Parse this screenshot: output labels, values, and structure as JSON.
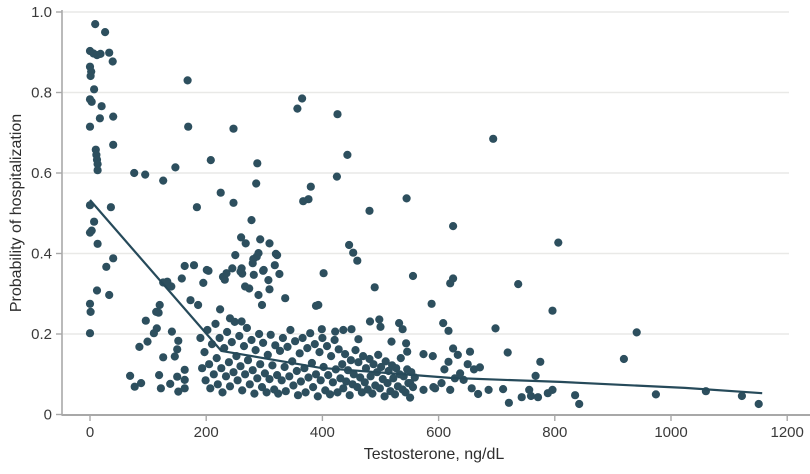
{
  "figure": {
    "x_axis_title": "Testosterone, ng/dL",
    "y_axis_title": "Probability of hospitalization"
  },
  "colors": {
    "point": "#2d4f5e",
    "trend_line": "#264a5a",
    "gridline": "#e9e9e7",
    "axis_line": "#a8a8a8",
    "tick_text": "#3a3a3a",
    "background": "#ffffff"
  },
  "chart_data": {
    "type": "scatter",
    "title": "",
    "xlabel": "Testosterone, ng/dL",
    "ylabel": "Probability of hospitalization",
    "xlim": [
      0,
      1200
    ],
    "ylim": [
      0,
      1.0
    ],
    "x_ticks": [
      0,
      200,
      400,
      600,
      800,
      1000,
      1200
    ],
    "x_tick_labels": [
      "0",
      "200",
      "400",
      "600",
      "800",
      "1000",
      "1200"
    ],
    "y_ticks": [
      0,
      0.2,
      0.4,
      0.6,
      0.8,
      1.0
    ],
    "y_tick_labels": [
      "0",
      "0.2",
      "0.4",
      "0.6",
      "0.8",
      "1.0"
    ],
    "grid": "horizontal gridlines at y ticks, no vertical grid",
    "legend": "none",
    "trend_line": [
      [
        0,
        0.533
      ],
      [
        226,
        0.158
      ],
      [
        396,
        0.116
      ],
      [
        620,
        0.091
      ],
      [
        809,
        0.081
      ],
      [
        1024,
        0.066
      ],
      [
        1157,
        0.053
      ]
    ],
    "points": [
      [
        9,
        0.97
      ],
      [
        26,
        0.95
      ],
      [
        0,
        0.903
      ],
      [
        6,
        0.897
      ],
      [
        12,
        0.893
      ],
      [
        18,
        0.896
      ],
      [
        33,
        0.899
      ],
      [
        39,
        0.877
      ],
      [
        0,
        0.864
      ],
      [
        2,
        0.852
      ],
      [
        1,
        0.841
      ],
      [
        7,
        0.808
      ],
      [
        0,
        0.783
      ],
      [
        3,
        0.777
      ],
      [
        20,
        0.766
      ],
      [
        40,
        0.74
      ],
      [
        17,
        0.736
      ],
      [
        0,
        0.715
      ],
      [
        10,
        0.658
      ],
      [
        11,
        0.645
      ],
      [
        12,
        0.633
      ],
      [
        13,
        0.622
      ],
      [
        13,
        0.607
      ],
      [
        40,
        0.67
      ],
      [
        0,
        0.52
      ],
      [
        36,
        0.515
      ],
      [
        7,
        0.479
      ],
      [
        3,
        0.457
      ],
      [
        0,
        0.452
      ],
      [
        13,
        0.424
      ],
      [
        40,
        0.388
      ],
      [
        28,
        0.367
      ],
      [
        12,
        0.308
      ],
      [
        33,
        0.297
      ],
      [
        0,
        0.275
      ],
      [
        1,
        0.255
      ],
      [
        0,
        0.202
      ],
      [
        76,
        0.6
      ],
      [
        95,
        0.596
      ],
      [
        126,
        0.581
      ],
      [
        147,
        0.614
      ],
      [
        168,
        0.83
      ],
      [
        169,
        0.715
      ],
      [
        184,
        0.515
      ],
      [
        96,
        0.233
      ],
      [
        118,
        0.253
      ],
      [
        115,
        0.214
      ],
      [
        110,
        0.202
      ],
      [
        141,
        0.206
      ],
      [
        85,
        0.168
      ],
      [
        99,
        0.181
      ],
      [
        152,
        0.183
      ],
      [
        150,
        0.162
      ],
      [
        126,
        0.142
      ],
      [
        146,
        0.144
      ],
      [
        69,
        0.096
      ],
      [
        77,
        0.069
      ],
      [
        88,
        0.078
      ],
      [
        119,
        0.098
      ],
      [
        122,
        0.065
      ],
      [
        138,
        0.076
      ],
      [
        150,
        0.094
      ],
      [
        152,
        0.057
      ],
      [
        163,
        0.065
      ],
      [
        163,
        0.111
      ],
      [
        163,
        0.086
      ],
      [
        126,
        0.328
      ],
      [
        133,
        0.33
      ],
      [
        135,
        0.322
      ],
      [
        140,
        0.318
      ],
      [
        120,
        0.272
      ],
      [
        114,
        0.255
      ],
      [
        158,
        0.338
      ],
      [
        163,
        0.369
      ],
      [
        179,
        0.371
      ],
      [
        173,
        0.284
      ],
      [
        186,
        0.272
      ],
      [
        208,
        0.632
      ],
      [
        288,
        0.624
      ],
      [
        286,
        0.574
      ],
      [
        225,
        0.551
      ],
      [
        247,
        0.526
      ],
      [
        278,
        0.483
      ],
      [
        260,
        0.44
      ],
      [
        268,
        0.425
      ],
      [
        293,
        0.435
      ],
      [
        309,
        0.425
      ],
      [
        320,
        0.399
      ],
      [
        290,
        0.401
      ],
      [
        247,
        0.71
      ],
      [
        367,
        0.53
      ],
      [
        376,
        0.535
      ],
      [
        380,
        0.566
      ],
      [
        365,
        0.785
      ],
      [
        357,
        0.76
      ],
      [
        250,
        0.396
      ],
      [
        287,
        0.392
      ],
      [
        322,
        0.396
      ],
      [
        204,
        0.357
      ],
      [
        229,
        0.342
      ],
      [
        232,
        0.335
      ],
      [
        259,
        0.355
      ],
      [
        262,
        0.35
      ],
      [
        280,
        0.376
      ],
      [
        298,
        0.357
      ],
      [
        318,
        0.371
      ],
      [
        274,
        0.313
      ],
      [
        290,
        0.297
      ],
      [
        307,
        0.334
      ],
      [
        309,
        0.311
      ],
      [
        326,
        0.349
      ],
      [
        336,
        0.289
      ],
      [
        389,
        0.27
      ],
      [
        195,
        0.327
      ],
      [
        267,
        0.318
      ],
      [
        296,
        0.272
      ],
      [
        224,
        0.261
      ],
      [
        241,
        0.239
      ],
      [
        261,
        0.231
      ],
      [
        235,
        0.351
      ],
      [
        245,
        0.363
      ],
      [
        261,
        0.363
      ],
      [
        282,
        0.347
      ],
      [
        299,
        0.359
      ],
      [
        281,
        0.386
      ],
      [
        201,
        0.359
      ],
      [
        426,
        0.746
      ],
      [
        443,
        0.645
      ],
      [
        425,
        0.591
      ],
      [
        545,
        0.537
      ],
      [
        481,
        0.506
      ],
      [
        625,
        0.468
      ],
      [
        446,
        0.421
      ],
      [
        453,
        0.402
      ],
      [
        460,
        0.382
      ],
      [
        402,
        0.351
      ],
      [
        556,
        0.344
      ],
      [
        625,
        0.338
      ],
      [
        490,
        0.316
      ],
      [
        588,
        0.275
      ],
      [
        393,
        0.272
      ],
      [
        694,
        0.685
      ],
      [
        806,
        0.427
      ],
      [
        620,
        0.326
      ],
      [
        737,
        0.324
      ],
      [
        796,
        0.258
      ],
      [
        608,
        0.227
      ],
      [
        617,
        0.208
      ],
      [
        698,
        0.214
      ],
      [
        941,
        0.204
      ],
      [
        919,
        0.138
      ],
      [
        482,
        0.231
      ],
      [
        498,
        0.236
      ],
      [
        500,
        0.218
      ],
      [
        532,
        0.227
      ],
      [
        538,
        0.212
      ],
      [
        399,
        0.212
      ],
      [
        422,
        0.206
      ],
      [
        436,
        0.21
      ],
      [
        450,
        0.212
      ],
      [
        462,
        0.187
      ],
      [
        519,
        0.181
      ],
      [
        544,
        0.177
      ],
      [
        546,
        0.156
      ],
      [
        574,
        0.15
      ],
      [
        590,
        0.145
      ],
      [
        551,
        0.078
      ],
      [
        574,
        0.061
      ],
      [
        591,
        0.068
      ],
      [
        625,
        0.164
      ],
      [
        633,
        0.148
      ],
      [
        654,
        0.156
      ],
      [
        719,
        0.154
      ],
      [
        617,
        0.131
      ],
      [
        610,
        0.112
      ],
      [
        650,
        0.125
      ],
      [
        661,
        0.112
      ],
      [
        671,
        0.117
      ],
      [
        637,
        0.102
      ],
      [
        643,
        0.086
      ],
      [
        628,
        0.09
      ],
      [
        605,
        0.078
      ],
      [
        594,
        0.065
      ],
      [
        620,
        0.061
      ],
      [
        657,
        0.065
      ],
      [
        668,
        0.051
      ],
      [
        686,
        0.061
      ],
      [
        711,
        0.063
      ],
      [
        767,
        0.096
      ],
      [
        775,
        0.131
      ],
      [
        756,
        0.061
      ],
      [
        743,
        0.043
      ],
      [
        759,
        0.046
      ],
      [
        771,
        0.043
      ],
      [
        788,
        0.053
      ],
      [
        796,
        0.061
      ],
      [
        721,
        0.029
      ],
      [
        835,
        0.048
      ],
      [
        842,
        0.026
      ],
      [
        974,
        0.05
      ],
      [
        1060,
        0.058
      ],
      [
        1122,
        0.046
      ],
      [
        1151,
        0.026
      ],
      [
        190,
        0.19
      ],
      [
        193,
        0.115
      ],
      [
        197,
        0.155
      ],
      [
        199,
        0.085
      ],
      [
        202,
        0.21
      ],
      [
        205,
        0.125
      ],
      [
        207,
        0.065
      ],
      [
        210,
        0.175
      ],
      [
        213,
        0.1
      ],
      [
        216,
        0.225
      ],
      [
        218,
        0.14
      ],
      [
        220,
        0.075
      ],
      [
        223,
        0.19
      ],
      [
        226,
        0.115
      ],
      [
        228,
        0.055
      ],
      [
        231,
        0.165
      ],
      [
        234,
        0.095
      ],
      [
        236,
        0.205
      ],
      [
        239,
        0.13
      ],
      [
        241,
        0.07
      ],
      [
        244,
        0.18
      ],
      [
        247,
        0.105
      ],
      [
        249,
        0.23
      ],
      [
        252,
        0.145
      ],
      [
        254,
        0.085
      ],
      [
        257,
        0.195
      ],
      [
        259,
        0.12
      ],
      [
        262,
        0.06
      ],
      [
        265,
        0.17
      ],
      [
        267,
        0.1
      ],
      [
        270,
        0.215
      ],
      [
        272,
        0.135
      ],
      [
        275,
        0.075
      ],
      [
        278,
        0.185
      ],
      [
        280,
        0.11
      ],
      [
        283,
        0.052
      ],
      [
        285,
        0.16
      ],
      [
        288,
        0.09
      ],
      [
        291,
        0.2
      ],
      [
        293,
        0.125
      ],
      [
        296,
        0.068
      ],
      [
        298,
        0.178
      ],
      [
        301,
        0.102
      ],
      [
        304,
        0.055
      ],
      [
        306,
        0.148
      ],
      [
        309,
        0.088
      ],
      [
        311,
        0.198
      ],
      [
        314,
        0.122
      ],
      [
        317,
        0.062
      ],
      [
        319,
        0.172
      ],
      [
        322,
        0.098
      ],
      [
        324,
        0.052
      ],
      [
        327,
        0.158
      ],
      [
        330,
        0.085
      ],
      [
        332,
        0.19
      ],
      [
        335,
        0.118
      ],
      [
        337,
        0.058
      ],
      [
        340,
        0.168
      ],
      [
        343,
        0.095
      ],
      [
        345,
        0.21
      ],
      [
        348,
        0.132
      ],
      [
        350,
        0.072
      ],
      [
        353,
        0.182
      ],
      [
        356,
        0.108
      ],
      [
        358,
        0.048
      ],
      [
        361,
        0.152
      ],
      [
        363,
        0.082
      ],
      [
        366,
        0.19
      ],
      [
        369,
        0.115
      ],
      [
        371,
        0.055
      ],
      [
        374,
        0.165
      ],
      [
        376,
        0.092
      ],
      [
        379,
        0.202
      ],
      [
        382,
        0.128
      ],
      [
        384,
        0.068
      ],
      [
        387,
        0.175
      ],
      [
        389,
        0.1
      ],
      [
        392,
        0.045
      ],
      [
        395,
        0.155
      ],
      [
        397,
        0.085
      ],
      [
        400,
        0.19
      ],
      [
        402,
        0.118
      ],
      [
        405,
        0.06
      ],
      [
        408,
        0.17
      ],
      [
        410,
        0.098
      ],
      [
        413,
        0.05
      ],
      [
        415,
        0.145
      ],
      [
        418,
        0.08
      ],
      [
        421,
        0.185
      ],
      [
        423,
        0.112
      ],
      [
        426,
        0.055
      ],
      [
        428,
        0.162
      ],
      [
        431,
        0.09
      ],
      [
        434,
        0.125
      ],
      [
        436,
        0.065
      ],
      [
        439,
        0.15
      ],
      [
        441,
        0.082
      ],
      [
        444,
        0.11
      ],
      [
        447,
        0.048
      ],
      [
        449,
        0.135
      ],
      [
        452,
        0.075
      ],
      [
        454,
        0.1
      ],
      [
        457,
        0.16
      ],
      [
        460,
        0.068
      ],
      [
        462,
        0.13
      ],
      [
        465,
        0.092
      ],
      [
        468,
        0.055
      ],
      [
        470,
        0.145
      ],
      [
        473,
        0.08
      ],
      [
        475,
        0.115
      ],
      [
        478,
        0.062
      ],
      [
        481,
        0.138
      ],
      [
        483,
        0.095
      ],
      [
        486,
        0.052
      ],
      [
        488,
        0.125
      ],
      [
        491,
        0.072
      ],
      [
        494,
        0.105
      ],
      [
        496,
        0.148
      ],
      [
        499,
        0.065
      ],
      [
        501,
        0.118
      ],
      [
        504,
        0.088
      ],
      [
        507,
        0.045
      ],
      [
        509,
        0.132
      ],
      [
        512,
        0.078
      ],
      [
        514,
        0.108
      ],
      [
        517,
        0.058
      ],
      [
        520,
        0.122
      ],
      [
        522,
        0.09
      ],
      [
        525,
        0.05
      ],
      [
        527,
        0.115
      ],
      [
        530,
        0.07
      ],
      [
        533,
        0.1
      ],
      [
        535,
        0.14
      ],
      [
        538,
        0.062
      ],
      [
        540,
        0.095
      ],
      [
        543,
        0.055
      ],
      [
        546,
        0.112
      ],
      [
        548,
        0.078
      ],
      [
        551,
        0.042
      ],
      [
        553,
        0.105
      ],
      [
        556,
        0.068
      ],
      [
        559,
        0.092
      ]
    ]
  }
}
